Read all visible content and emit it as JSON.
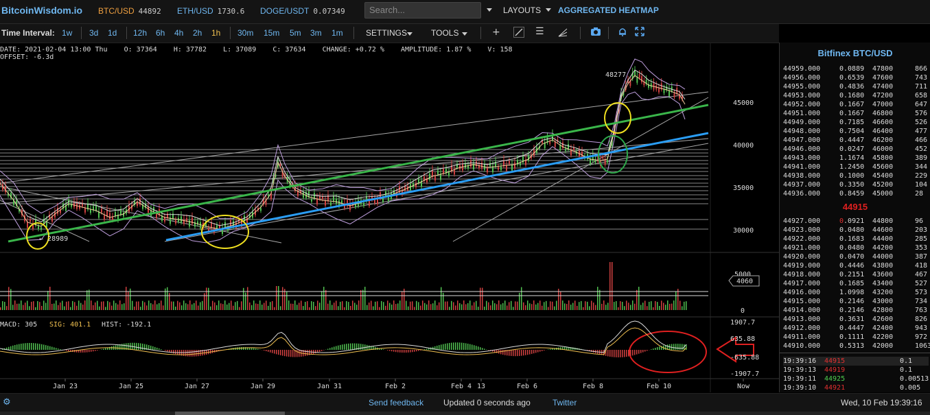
{
  "header": {
    "logo": "BitcoinWisdom.io",
    "tickers": [
      {
        "symbol": "BTC/USD",
        "price": "44892"
      },
      {
        "symbol": "ETH/USD",
        "price": "1730.6"
      },
      {
        "symbol": "DOGE/USDT",
        "price": "0.07349"
      }
    ],
    "search_placeholder": "Search...",
    "layouts_label": "LAYOUTS",
    "heatmap_label": "AGGREGATED HEATMAP"
  },
  "toolbar": {
    "time_interval_label": "Time Interval:",
    "intervals": [
      "1w",
      "3d",
      "1d",
      "12h",
      "6h",
      "4h",
      "2h",
      "1h",
      "30m",
      "15m",
      "5m",
      "3m",
      "1m"
    ],
    "active_interval": "1h",
    "settings_label": "SETTINGS",
    "tools_label": "TOOLS"
  },
  "chart_info": {
    "line1": "DATE: 2021-02-04 13:00 Thu    O: 37364    H: 37782    L: 37089    C: 37634    CHANGE: +0.72 %    AMPLITUDE: 1.87 %    V: 158",
    "line2": "OFFSET: -6.3d"
  },
  "chart": {
    "price_ticks": [
      "45000",
      "40000",
      "35000",
      "30000"
    ],
    "volume_ticks": [
      "5000",
      "0"
    ],
    "volume_current": "4060",
    "macd_ticks": [
      "1907.7",
      "635.88",
      "-635.88",
      "-1907.7"
    ],
    "macd_label": "MACD: 305",
    "sig_label": "SIG: 401.1",
    "hist_label": "HIST: -192.1",
    "high_label": "48277",
    "low_label": "28989",
    "dates": [
      "Jan 23",
      "Jan 25",
      "Jan 27",
      "Jan 29",
      "Jan 31",
      "Feb 2",
      "Feb 4",
      "13",
      "Feb 6",
      "Feb 8",
      "Feb 10",
      "Now"
    ],
    "colors": {
      "green_trend": "#3ab54a",
      "blue_trend": "#2a9df4",
      "annotation_yellow": "#f0e020",
      "annotation_green": "#2ea84a",
      "annotation_red": "#e02020",
      "candle_up": "#50c050",
      "candle_down": "#d04040"
    }
  },
  "orderbook": {
    "title": "Bitfinex BTC/USD",
    "asks": [
      [
        "44959.000",
        "0.0889",
        "47800",
        "866"
      ],
      [
        "44956.000",
        "0.6539",
        "47600",
        "743"
      ],
      [
        "44955.000",
        "0.4836",
        "47400",
        "711"
      ],
      [
        "44953.000",
        "0.1680",
        "47200",
        "658"
      ],
      [
        "44952.000",
        "0.1667",
        "47000",
        "647"
      ],
      [
        "44951.000",
        "0.1667",
        "46800",
        "576"
      ],
      [
        "44949.000",
        "0.7185",
        "46600",
        "526"
      ],
      [
        "44948.000",
        "0.7504",
        "46400",
        "477"
      ],
      [
        "44947.000",
        "0.4447",
        "46200",
        "466"
      ],
      [
        "44946.000",
        "0.0247",
        "46000",
        "452"
      ],
      [
        "44943.000",
        "1.1674",
        "45800",
        "389"
      ],
      [
        "44941.000",
        "1.2450",
        "45600",
        "344"
      ],
      [
        "44938.000",
        "0.1000",
        "45400",
        "229"
      ],
      [
        "44937.000",
        "0.3350",
        "45200",
        "104"
      ],
      [
        "44936.000",
        "0.8459",
        "45000",
        "28"
      ]
    ],
    "mid_price": "44915",
    "bids": [
      [
        "44927.000",
        "0.0921",
        "44800",
        "96"
      ],
      [
        "44923.000",
        "0.0480",
        "44600",
        "203"
      ],
      [
        "44922.000",
        "0.1683",
        "44400",
        "285"
      ],
      [
        "44921.000",
        "0.0480",
        "44200",
        "353"
      ],
      [
        "44920.000",
        "0.0470",
        "44000",
        "387"
      ],
      [
        "44919.000",
        "0.4446",
        "43800",
        "418"
      ],
      [
        "44918.000",
        "0.2151",
        "43600",
        "467"
      ],
      [
        "44917.000",
        "0.1685",
        "43400",
        "527"
      ],
      [
        "44916.000",
        "1.0998",
        "43200",
        "573"
      ],
      [
        "44915.000",
        "0.2146",
        "43000",
        "734"
      ],
      [
        "44914.000",
        "0.2146",
        "42800",
        "763"
      ],
      [
        "44913.000",
        "0.3631",
        "42600",
        "826"
      ],
      [
        "44912.000",
        "0.4447",
        "42400",
        "943"
      ],
      [
        "44911.000",
        "0.1111",
        "42200",
        "972"
      ],
      [
        "44910.000",
        "0.5313",
        "42000",
        "1063"
      ]
    ],
    "trades": [
      [
        "19:39:16",
        "44915",
        "0.1",
        "red"
      ],
      [
        "19:39:13",
        "44919",
        "0.1",
        "red"
      ],
      [
        "19:39:11",
        "44925",
        "0.00513",
        "green"
      ],
      [
        "19:39:10",
        "44921",
        "0.005",
        "red"
      ]
    ]
  },
  "status": {
    "feedback": "Send feedback",
    "updated": "Updated 0 seconds ago",
    "twitter": "Twitter",
    "datetime": "Wed, 10 Feb 19:39:16"
  }
}
